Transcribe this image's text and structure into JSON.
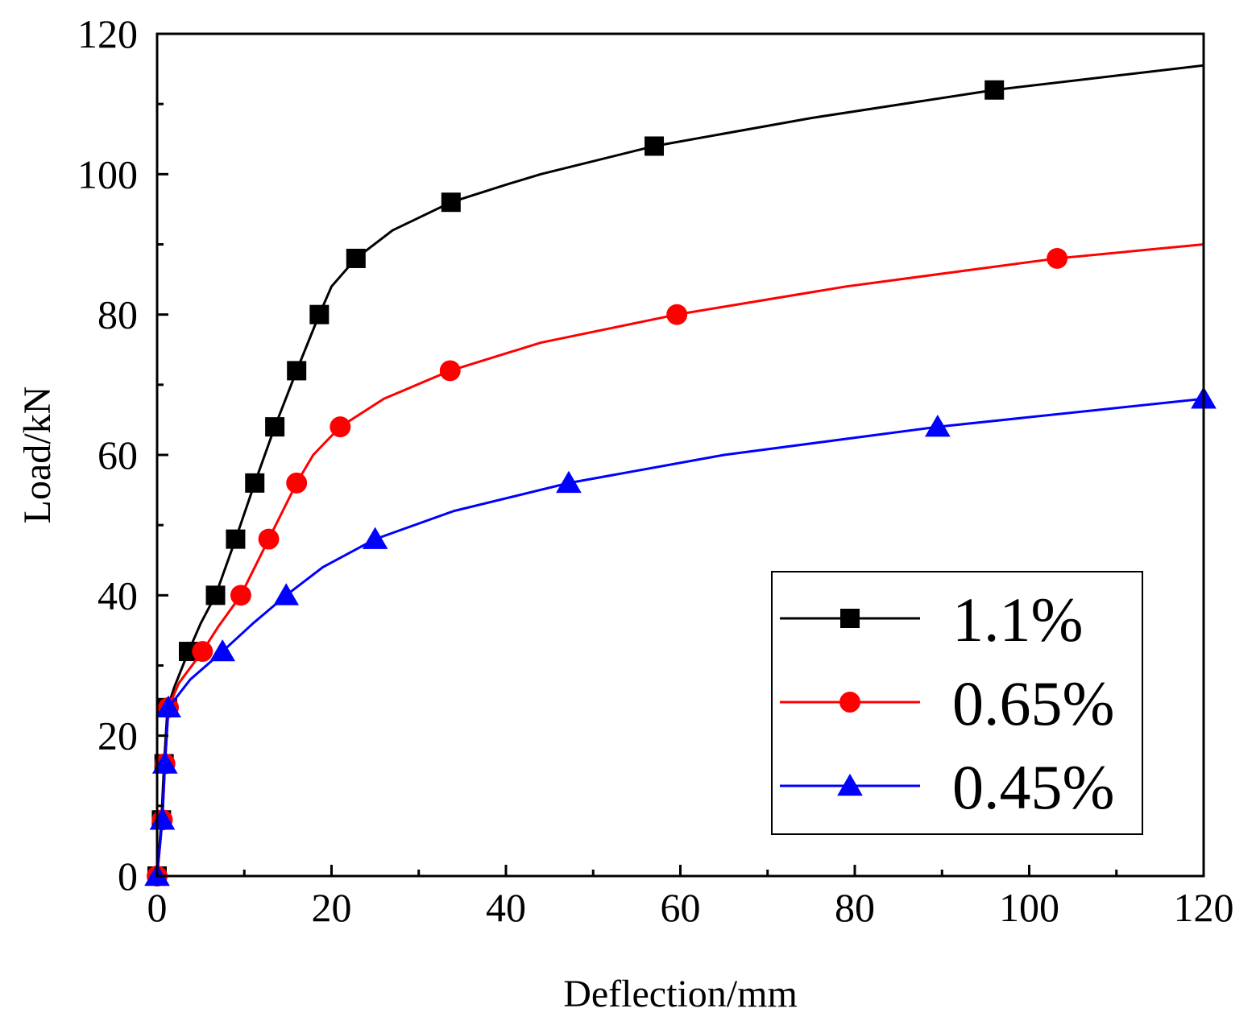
{
  "chart_data": {
    "type": "line",
    "title": "",
    "xlabel": "Deflection/mm",
    "ylabel": "Load/kN",
    "xlim": [
      0,
      120
    ],
    "ylim": [
      0,
      120
    ],
    "xticks": [
      0,
      20,
      40,
      60,
      80,
      100,
      120
    ],
    "yticks": [
      0,
      20,
      40,
      60,
      80,
      100,
      120
    ],
    "grid": false,
    "legend_position": "bottom-right",
    "series": [
      {
        "name": "1.1%",
        "color": "#000000",
        "marker": "square",
        "x": [
          0,
          0.5,
          0.8,
          1.2,
          3.6,
          6.7,
          9.0,
          11.2,
          13.5,
          16.0,
          18.6,
          22.8,
          33.7,
          57.0,
          96.0
        ],
        "y": [
          0,
          8,
          16,
          24,
          32,
          40,
          48,
          56,
          64,
          72,
          80,
          88,
          96,
          104,
          112
        ],
        "line_x": [
          0,
          0.5,
          0.8,
          1.2,
          2.0,
          3.6,
          5.0,
          6.7,
          9.0,
          11.2,
          13.5,
          16.0,
          18.6,
          20.0,
          22.8,
          27.0,
          33.7,
          40.0,
          44.0,
          57.0,
          75.0,
          96.0,
          120.0
        ],
        "line_y": [
          0,
          8,
          16,
          24,
          27,
          32,
          36,
          40,
          48,
          56,
          64,
          72,
          80,
          84,
          88,
          92,
          96,
          98.5,
          100,
          104,
          108,
          112,
          115.5
        ]
      },
      {
        "name": "0.65%",
        "color": "#ff0000",
        "marker": "circle",
        "x": [
          0,
          0.6,
          0.9,
          1.3,
          5.2,
          9.6,
          12.8,
          16.0,
          21.0,
          33.6,
          59.6,
          103.2
        ],
        "y": [
          0,
          8,
          16,
          24,
          32,
          40,
          48,
          56,
          64,
          72,
          80,
          88
        ],
        "line_x": [
          0,
          0.6,
          0.9,
          1.3,
          2.5,
          5.2,
          7.0,
          9.6,
          12.8,
          16.0,
          17.9,
          21.0,
          26.0,
          33.6,
          44.0,
          59.6,
          79.0,
          103.2,
          120.0
        ],
        "line_y": [
          0,
          8,
          16,
          24,
          27.5,
          32,
          35.5,
          40,
          48,
          56,
          60,
          64,
          68,
          72,
          76,
          80,
          84,
          88,
          90
        ]
      },
      {
        "name": "0.45%",
        "color": "#0000ff",
        "marker": "triangle",
        "x": [
          0,
          0.6,
          0.9,
          1.3,
          7.5,
          14.8,
          25.0,
          47.2,
          89.5,
          120.0
        ],
        "y": [
          0,
          8,
          16,
          24,
          32,
          40,
          48,
          56,
          64,
          68
        ],
        "line_x": [
          0,
          0.6,
          0.9,
          1.3,
          3.8,
          7.5,
          11.0,
          14.8,
          19.0,
          25.0,
          34.0,
          47.2,
          65.0,
          89.5,
          120.0
        ],
        "line_y": [
          0,
          8,
          16,
          24,
          28,
          32,
          36,
          40,
          44,
          48,
          52,
          56,
          60,
          64,
          68
        ]
      }
    ]
  }
}
